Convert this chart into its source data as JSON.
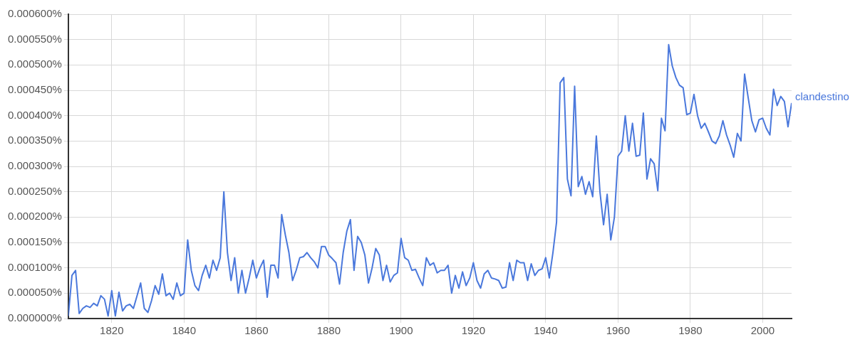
{
  "chart_data": {
    "type": "line",
    "x": [
      1808,
      1809,
      1810,
      1811,
      1812,
      1813,
      1814,
      1815,
      1816,
      1817,
      1818,
      1819,
      1820,
      1821,
      1822,
      1823,
      1824,
      1825,
      1826,
      1827,
      1828,
      1829,
      1830,
      1831,
      1832,
      1833,
      1834,
      1835,
      1836,
      1837,
      1838,
      1839,
      1840,
      1841,
      1842,
      1843,
      1844,
      1845,
      1846,
      1847,
      1848,
      1849,
      1850,
      1851,
      1852,
      1853,
      1854,
      1855,
      1856,
      1857,
      1858,
      1859,
      1860,
      1861,
      1862,
      1863,
      1864,
      1865,
      1866,
      1867,
      1868,
      1869,
      1870,
      1871,
      1872,
      1873,
      1874,
      1875,
      1876,
      1877,
      1878,
      1879,
      1880,
      1881,
      1882,
      1883,
      1884,
      1885,
      1886,
      1887,
      1888,
      1889,
      1890,
      1891,
      1892,
      1893,
      1894,
      1895,
      1896,
      1897,
      1898,
      1899,
      1900,
      1901,
      1902,
      1903,
      1904,
      1905,
      1906,
      1907,
      1908,
      1909,
      1910,
      1911,
      1912,
      1913,
      1914,
      1915,
      1916,
      1917,
      1918,
      1919,
      1920,
      1921,
      1922,
      1923,
      1924,
      1925,
      1926,
      1927,
      1928,
      1929,
      1930,
      1931,
      1932,
      1933,
      1934,
      1935,
      1936,
      1937,
      1938,
      1939,
      1940,
      1941,
      1942,
      1943,
      1944,
      1945,
      1946,
      1947,
      1948,
      1949,
      1950,
      1951,
      1952,
      1953,
      1954,
      1955,
      1956,
      1957,
      1958,
      1959,
      1960,
      1961,
      1962,
      1963,
      1964,
      1965,
      1966,
      1967,
      1968,
      1969,
      1970,
      1971,
      1972,
      1973,
      1974,
      1975,
      1976,
      1977,
      1978,
      1979,
      1980,
      1981,
      1982,
      1983,
      1984,
      1985,
      1986,
      1987,
      1988,
      1989,
      1990,
      1991,
      1992,
      1993,
      1994,
      1995,
      1996,
      1997,
      1998,
      1999,
      2000,
      2001,
      2002,
      2003,
      2004,
      2005,
      2006,
      2007,
      2008
    ],
    "series": [
      {
        "name": "clandestino",
        "color": "#4a78dc",
        "values": [
          5e-06,
          8.5e-05,
          9.5e-05,
          1e-05,
          2e-05,
          2.5e-05,
          2.2e-05,
          3e-05,
          2.5e-05,
          4.5e-05,
          3.8e-05,
          5e-06,
          5.5e-05,
          5e-06,
          5.2e-05,
          1.5e-05,
          2.5e-05,
          2.8e-05,
          2e-05,
          4.5e-05,
          7e-05,
          2e-05,
          1.2e-05,
          3.5e-05,
          6.5e-05,
          4.8e-05,
          8.8e-05,
          4.5e-05,
          5e-05,
          3.8e-05,
          7e-05,
          4.5e-05,
          5e-05,
          0.000155,
          9.5e-05,
          6.5e-05,
          5.5e-05,
          8.5e-05,
          0.000105,
          8e-05,
          0.000115,
          9.5e-05,
          0.00012,
          0.00025,
          0.00013,
          7.5e-05,
          0.00012,
          5e-05,
          9.5e-05,
          5e-05,
          8e-05,
          0.000115,
          8e-05,
          0.0001,
          0.000115,
          4.2e-05,
          0.000105,
          0.000105,
          8e-05,
          0.000205,
          0.000165,
          0.00013,
          7.5e-05,
          9.5e-05,
          0.00012,
          0.000122,
          0.00013,
          0.00012,
          0.000112,
          0.0001,
          0.000142,
          0.000142,
          0.000125,
          0.000118,
          0.00011,
          6.8e-05,
          0.00013,
          0.000172,
          0.000195,
          9.5e-05,
          0.000162,
          0.00015,
          0.000125,
          7e-05,
          0.0001,
          0.000138,
          0.000125,
          7.5e-05,
          0.000105,
          7.2e-05,
          8.5e-05,
          9e-05,
          0.000158,
          0.00012,
          0.000115,
          9.5e-05,
          9.7e-05,
          8e-05,
          6.5e-05,
          0.00012,
          0.000105,
          0.00011,
          9e-05,
          9.5e-05,
          9.5e-05,
          0.000105,
          5e-05,
          8.5e-05,
          6e-05,
          9.2e-05,
          6.5e-05,
          8e-05,
          0.00011,
          7.5e-05,
          6e-05,
          8.8e-05,
          9.5e-05,
          8e-05,
          7.8e-05,
          7.5e-05,
          6e-05,
          6.2e-05,
          0.00011,
          7.5e-05,
          0.000115,
          0.00011,
          0.00011,
          7.5e-05,
          0.000108,
          8.5e-05,
          9.5e-05,
          9.8e-05,
          0.00012,
          8e-05,
          0.00013,
          0.00019,
          0.000465,
          0.000475,
          0.000275,
          0.000242,
          0.000458,
          0.00026,
          0.00028,
          0.000245,
          0.00027,
          0.00024,
          0.00036,
          0.00025,
          0.000185,
          0.000245,
          0.000155,
          0.0002,
          0.00032,
          0.00033,
          0.0004,
          0.00033,
          0.000385,
          0.00032,
          0.000322,
          0.000405,
          0.000275,
          0.000315,
          0.000305,
          0.000252,
          0.000395,
          0.00037,
          0.00054,
          0.000498,
          0.000475,
          0.00046,
          0.000455,
          0.000402,
          0.000405,
          0.000442,
          0.0004,
          0.000375,
          0.000385,
          0.000368,
          0.00035,
          0.000345,
          0.00036,
          0.00039,
          0.000362,
          0.000342,
          0.000318,
          0.000365,
          0.00035,
          0.000482,
          0.000435,
          0.00039,
          0.000368,
          0.000392,
          0.000395,
          0.000375,
          0.000362,
          0.000452,
          0.00042,
          0.000438,
          0.000428,
          0.000378,
          0.000425
        ]
      }
    ],
    "xlim": [
      1808,
      2008
    ],
    "xticks": [
      1820,
      1840,
      1860,
      1880,
      1900,
      1920,
      1940,
      1960,
      1980,
      2000
    ],
    "ylim": [
      0,
      0.0006
    ],
    "yticks": [
      {
        "value": 0,
        "label": "0.000000%"
      },
      {
        "value": 5e-05,
        "label": "0.000050%"
      },
      {
        "value": 0.0001,
        "label": "0.000100%"
      },
      {
        "value": 0.00015,
        "label": "0.000150%"
      },
      {
        "value": 0.0002,
        "label": "0.000200%"
      },
      {
        "value": 0.00025,
        "label": "0.000250%"
      },
      {
        "value": 0.0003,
        "label": "0.000300%"
      },
      {
        "value": 0.00035,
        "label": "0.000350%"
      },
      {
        "value": 0.0004,
        "label": "0.000400%"
      },
      {
        "value": 0.00045,
        "label": "0.000450%"
      },
      {
        "value": 0.0005,
        "label": "0.000500%"
      },
      {
        "value": 0.00055,
        "label": "0.000550%"
      },
      {
        "value": 0.0006,
        "label": "0.000600%"
      }
    ],
    "grid": true,
    "legend": "right"
  }
}
